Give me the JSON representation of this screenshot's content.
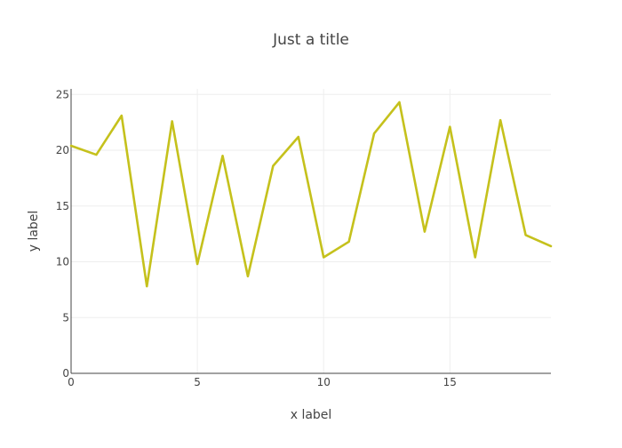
{
  "chart_data": {
    "type": "line",
    "title": "Just a title",
    "xlabel": "x label",
    "ylabel": "y label",
    "xlim": [
      0,
      19
    ],
    "ylim": [
      0,
      25.5
    ],
    "xticks": [
      0,
      5,
      10,
      15
    ],
    "yticks": [
      0,
      5,
      10,
      15,
      20,
      25
    ],
    "grid": true,
    "series": [
      {
        "color": "#c5c11c",
        "x": [
          0,
          1,
          2,
          3,
          4,
          5,
          6,
          7,
          8,
          9,
          10,
          11,
          12,
          13,
          14,
          15,
          16,
          17,
          18,
          19
        ],
        "y": [
          20.4,
          19.6,
          23.1,
          7.8,
          22.6,
          9.8,
          19.5,
          8.7,
          18.6,
          21.2,
          10.4,
          11.8,
          21.5,
          24.3,
          12.7,
          22.1,
          10.4,
          22.7,
          12.4,
          11.4
        ]
      }
    ]
  }
}
